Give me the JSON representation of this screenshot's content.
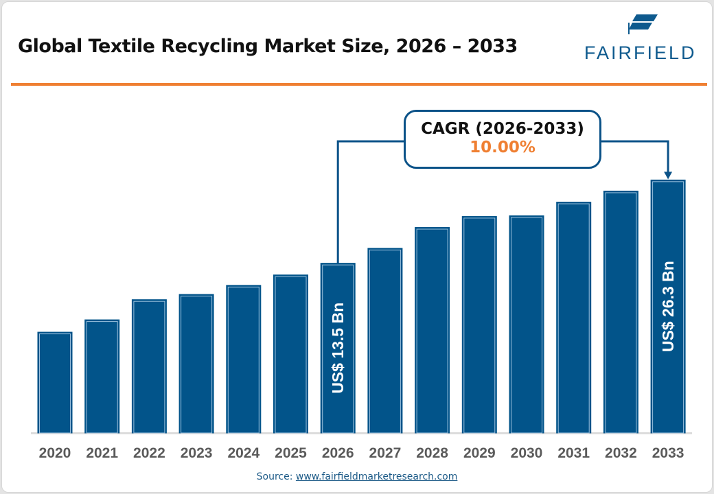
{
  "header": {
    "title": "Global Textile Recycling Market Size, 2026 – 2033",
    "logo_text": "FAIRFIELD"
  },
  "colors": {
    "bar": "#02548a",
    "accent": "#ef7f32",
    "axis_label": "#5a5a5a",
    "connector": "#0b5288"
  },
  "callout": {
    "label": "CAGR (2026-2033)",
    "value": "10.00%"
  },
  "source": {
    "prefix": "Source: ",
    "link": "www.fairfieldmarketresearch.com"
  },
  "chart_data": {
    "type": "bar",
    "categories": [
      "2020",
      "2021",
      "2022",
      "2023",
      "2024",
      "2025",
      "2026",
      "2027",
      "2028",
      "2029",
      "2030",
      "2031",
      "2032",
      "2033"
    ],
    "values": [
      2.9,
      4.8,
      7.9,
      8.7,
      10.1,
      11.7,
      13.5,
      15.8,
      19.0,
      20.7,
      20.8,
      22.9,
      24.6,
      26.3
    ],
    "data_labels": {
      "2026": "US$ 13.5 Bn",
      "2033": "US$ 26.3 Bn"
    },
    "ylim": [
      -12.6,
      27.6
    ],
    "y_axis_visible": false,
    "grid": false,
    "legend": "none",
    "unit": "US$ Bn"
  }
}
